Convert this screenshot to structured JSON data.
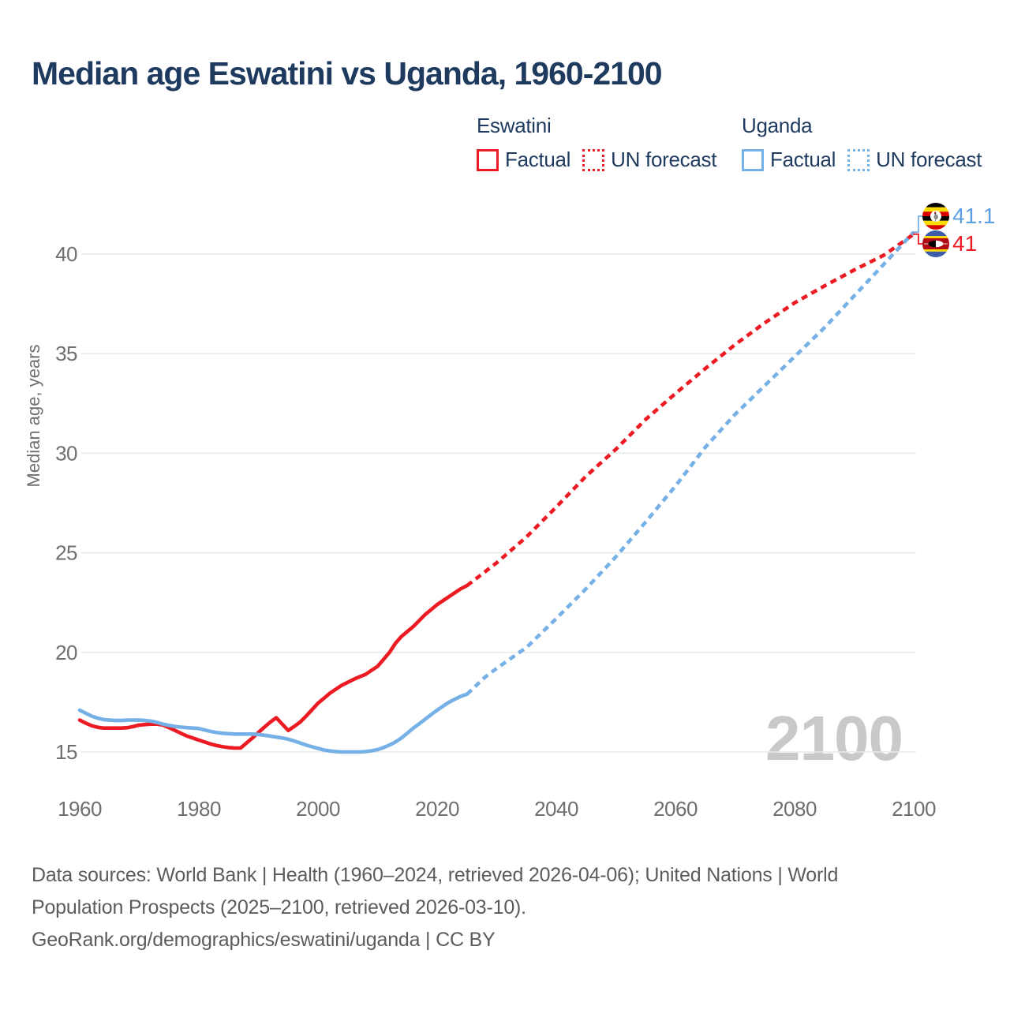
{
  "title": "Median age Eswatini vs Uganda, 1960-2100",
  "legend": {
    "groups": [
      {
        "country": "Eswatini",
        "color": "#ec1b23",
        "factual_label": "Factual",
        "forecast_label": "UN forecast"
      },
      {
        "country": "Uganda",
        "color": "#75b1e6",
        "factual_label": "Factual",
        "forecast_label": "UN forecast"
      }
    ]
  },
  "watermark": "2100",
  "end_labels": [
    {
      "country": "Uganda",
      "flag": "uganda-flag",
      "value": "41.1",
      "text_color": "#5d9fe2"
    },
    {
      "country": "Eswatini",
      "flag": "eswatini-flag",
      "value": "41",
      "text_color": "#ec1b23"
    }
  ],
  "footer": {
    "line1": "Data sources: World Bank | Health (1960–2024, retrieved 2026-04-06); United Nations | World",
    "line2": "Population Prospects (2025–2100, retrieved 2026-03-10).",
    "line3": "GeoRank.org/demographics/eswatini/uganda | CC BY"
  },
  "chart_data": {
    "type": "line",
    "title": "Median age Eswatini vs Uganda, 1960-2100",
    "xlabel": "",
    "ylabel": "Median age, years",
    "xlim": [
      1960,
      2100
    ],
    "ylim": [
      15,
      42
    ],
    "x_ticks": [
      1960,
      1980,
      2000,
      2020,
      2040,
      2060,
      2080,
      2100
    ],
    "y_ticks": [
      15,
      20,
      25,
      30,
      35,
      40
    ],
    "grid": "horizontal",
    "legend_position": "top",
    "series": [
      {
        "name": "Eswatini Factual",
        "color": "#ec1b23",
        "dash": "solid",
        "points": [
          [
            1960,
            16.6
          ],
          [
            1961,
            16.45
          ],
          [
            1962,
            16.32
          ],
          [
            1963,
            16.24
          ],
          [
            1964,
            16.2
          ],
          [
            1965,
            16.2
          ],
          [
            1966,
            16.2
          ],
          [
            1967,
            16.2
          ],
          [
            1968,
            16.22
          ],
          [
            1969,
            16.28
          ],
          [
            1970,
            16.35
          ],
          [
            1971,
            16.38
          ],
          [
            1972,
            16.4
          ],
          [
            1973,
            16.4
          ],
          [
            1974,
            16.35
          ],
          [
            1975,
            16.22
          ],
          [
            1976,
            16.08
          ],
          [
            1977,
            15.94
          ],
          [
            1978,
            15.8
          ],
          [
            1979,
            15.7
          ],
          [
            1980,
            15.6
          ],
          [
            1981,
            15.5
          ],
          [
            1982,
            15.4
          ],
          [
            1983,
            15.32
          ],
          [
            1984,
            15.26
          ],
          [
            1985,
            15.22
          ],
          [
            1986,
            15.2
          ],
          [
            1987,
            15.2
          ],
          [
            1988,
            15.45
          ],
          [
            1989,
            15.7
          ],
          [
            1990,
            15.98
          ],
          [
            1991,
            16.25
          ],
          [
            1992,
            16.5
          ],
          [
            1993,
            16.72
          ],
          [
            1994,
            16.4
          ],
          [
            1995,
            16.08
          ],
          [
            1996,
            16.28
          ],
          [
            1997,
            16.5
          ],
          [
            1998,
            16.8
          ],
          [
            1999,
            17.12
          ],
          [
            2000,
            17.45
          ],
          [
            2001,
            17.7
          ],
          [
            2002,
            17.95
          ],
          [
            2003,
            18.15
          ],
          [
            2004,
            18.35
          ],
          [
            2005,
            18.5
          ],
          [
            2006,
            18.65
          ],
          [
            2007,
            18.78
          ],
          [
            2008,
            18.9
          ],
          [
            2009,
            19.1
          ],
          [
            2010,
            19.3
          ],
          [
            2011,
            19.65
          ],
          [
            2012,
            20.0
          ],
          [
            2013,
            20.45
          ],
          [
            2014,
            20.8
          ],
          [
            2015,
            21.05
          ],
          [
            2016,
            21.3
          ],
          [
            2017,
            21.6
          ],
          [
            2018,
            21.9
          ],
          [
            2019,
            22.15
          ],
          [
            2020,
            22.4
          ],
          [
            2021,
            22.6
          ],
          [
            2022,
            22.8
          ],
          [
            2023,
            23.0
          ],
          [
            2024,
            23.2
          ],
          [
            2025,
            23.35
          ]
        ]
      },
      {
        "name": "Eswatini UN forecast",
        "color": "#ec1b23",
        "dash": "dashed",
        "points": [
          [
            2025,
            23.35
          ],
          [
            2030,
            24.5
          ],
          [
            2035,
            25.8
          ],
          [
            2040,
            27.3
          ],
          [
            2045,
            28.85
          ],
          [
            2050,
            30.2
          ],
          [
            2055,
            31.7
          ],
          [
            2060,
            33.0
          ],
          [
            2065,
            34.25
          ],
          [
            2070,
            35.45
          ],
          [
            2075,
            36.55
          ],
          [
            2080,
            37.55
          ],
          [
            2085,
            38.4
          ],
          [
            2090,
            39.2
          ],
          [
            2095,
            39.95
          ],
          [
            2100,
            41.0
          ]
        ]
      },
      {
        "name": "Uganda Factual",
        "color": "#75b1e6",
        "dash": "solid",
        "points": [
          [
            1960,
            17.1
          ],
          [
            1961,
            16.95
          ],
          [
            1962,
            16.8
          ],
          [
            1963,
            16.7
          ],
          [
            1964,
            16.63
          ],
          [
            1965,
            16.6
          ],
          [
            1966,
            16.58
          ],
          [
            1967,
            16.58
          ],
          [
            1968,
            16.6
          ],
          [
            1969,
            16.6
          ],
          [
            1970,
            16.6
          ],
          [
            1971,
            16.58
          ],
          [
            1972,
            16.55
          ],
          [
            1973,
            16.48
          ],
          [
            1974,
            16.4
          ],
          [
            1975,
            16.33
          ],
          [
            1976,
            16.28
          ],
          [
            1977,
            16.25
          ],
          [
            1978,
            16.22
          ],
          [
            1979,
            16.2
          ],
          [
            1980,
            16.18
          ],
          [
            1981,
            16.1
          ],
          [
            1982,
            16.03
          ],
          [
            1983,
            15.98
          ],
          [
            1984,
            15.94
          ],
          [
            1985,
            15.92
          ],
          [
            1986,
            15.9
          ],
          [
            1987,
            15.9
          ],
          [
            1988,
            15.9
          ],
          [
            1989,
            15.9
          ],
          [
            1990,
            15.88
          ],
          [
            1991,
            15.84
          ],
          [
            1992,
            15.8
          ],
          [
            1993,
            15.75
          ],
          [
            1994,
            15.7
          ],
          [
            1995,
            15.64
          ],
          [
            1996,
            15.55
          ],
          [
            1997,
            15.45
          ],
          [
            1998,
            15.35
          ],
          [
            1999,
            15.26
          ],
          [
            2000,
            15.18
          ],
          [
            2001,
            15.1
          ],
          [
            2002,
            15.05
          ],
          [
            2003,
            15.02
          ],
          [
            2004,
            15.0
          ],
          [
            2005,
            15.0
          ],
          [
            2006,
            15.0
          ],
          [
            2007,
            15.0
          ],
          [
            2008,
            15.02
          ],
          [
            2009,
            15.06
          ],
          [
            2010,
            15.12
          ],
          [
            2011,
            15.22
          ],
          [
            2012,
            15.35
          ],
          [
            2013,
            15.5
          ],
          [
            2014,
            15.7
          ],
          [
            2015,
            15.95
          ],
          [
            2016,
            16.2
          ],
          [
            2017,
            16.42
          ],
          [
            2018,
            16.65
          ],
          [
            2019,
            16.88
          ],
          [
            2020,
            17.1
          ],
          [
            2021,
            17.3
          ],
          [
            2022,
            17.5
          ],
          [
            2023,
            17.65
          ],
          [
            2024,
            17.8
          ],
          [
            2025,
            17.9
          ]
        ]
      },
      {
        "name": "Uganda UN forecast",
        "color": "#75b1e6",
        "dash": "dashed",
        "points": [
          [
            2025,
            17.9
          ],
          [
            2028,
            18.75
          ],
          [
            2030,
            19.2
          ],
          [
            2035,
            20.25
          ],
          [
            2040,
            21.7
          ],
          [
            2045,
            23.2
          ],
          [
            2050,
            24.8
          ],
          [
            2055,
            26.55
          ],
          [
            2060,
            28.35
          ],
          [
            2065,
            30.3
          ],
          [
            2070,
            31.95
          ],
          [
            2075,
            33.4
          ],
          [
            2080,
            34.85
          ],
          [
            2085,
            36.3
          ],
          [
            2090,
            37.9
          ],
          [
            2095,
            39.5
          ],
          [
            2100,
            41.1
          ]
        ]
      }
    ]
  }
}
